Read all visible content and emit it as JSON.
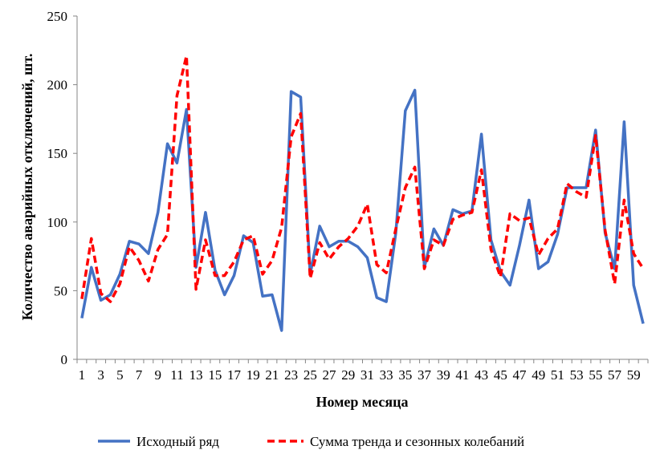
{
  "chart_data": {
    "type": "line",
    "x": [
      1,
      2,
      3,
      4,
      5,
      6,
      7,
      8,
      9,
      10,
      11,
      12,
      13,
      14,
      15,
      16,
      17,
      18,
      19,
      20,
      21,
      22,
      23,
      24,
      25,
      26,
      27,
      28,
      29,
      30,
      31,
      32,
      33,
      34,
      35,
      36,
      37,
      38,
      39,
      40,
      41,
      42,
      43,
      44,
      45,
      46,
      47,
      48,
      49,
      50,
      51,
      52,
      53,
      54,
      55,
      56,
      57,
      58,
      59,
      60
    ],
    "x_tick_labels": [
      "1",
      "3",
      "5",
      "7",
      "9",
      "11",
      "13",
      "15",
      "17",
      "19",
      "21",
      "23",
      "25",
      "27",
      "29",
      "31",
      "33",
      "35",
      "37",
      "39",
      "41",
      "43",
      "45",
      "47",
      "49",
      "51",
      "53",
      "55",
      "57",
      "59"
    ],
    "xlabel": "Номер месяца",
    "ylabel": "Количество аварийных отключений, шт.",
    "ylim": [
      0,
      250
    ],
    "yticks": [
      0,
      50,
      100,
      150,
      200,
      250
    ],
    "grid": false,
    "legend_position": "bottom",
    "series": [
      {
        "name": "Исходный ряд",
        "color": "#4472C4",
        "style": "solid",
        "values": [
          30,
          67,
          43,
          47,
          62,
          86,
          84,
          77,
          107,
          157,
          143,
          182,
          67,
          107,
          65,
          47,
          61,
          90,
          85,
          46,
          47,
          21,
          195,
          191,
          62,
          97,
          82,
          86,
          86,
          82,
          74,
          45,
          42,
          92,
          181,
          196,
          67,
          95,
          83,
          109,
          106,
          108,
          164,
          87,
          64,
          54,
          83,
          116,
          66,
          71,
          91,
          125,
          125,
          125,
          167,
          92,
          66,
          173,
          54,
          26
        ]
      },
      {
        "name": "Сумма тренда и сезонных колебаний",
        "color": "#FF0000",
        "style": "dashed",
        "values": [
          44,
          88,
          48,
          42,
          55,
          82,
          72,
          57,
          80,
          91,
          192,
          221,
          51,
          87,
          61,
          61,
          71,
          87,
          90,
          62,
          72,
          96,
          162,
          179,
          59,
          85,
          73,
          82,
          88,
          97,
          113,
          69,
          63,
          95,
          125,
          140,
          66,
          87,
          83,
          102,
          105,
          107,
          138,
          80,
          60,
          106,
          101,
          103,
          76,
          88,
          95,
          128,
          122,
          118,
          163,
          94,
          55,
          116,
          77,
          66
        ]
      }
    ]
  }
}
